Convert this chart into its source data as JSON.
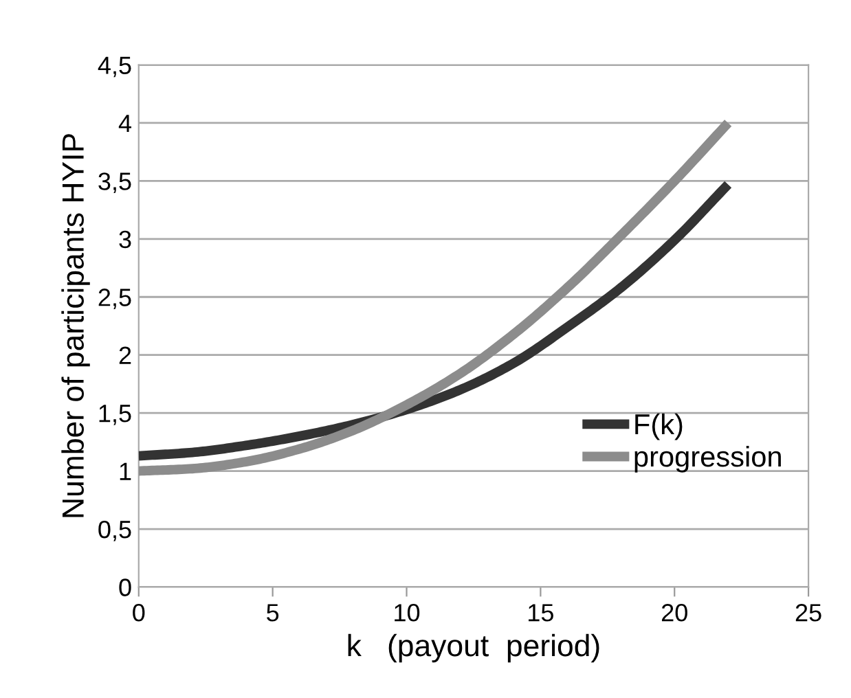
{
  "chart_data": {
    "type": "line",
    "xlabel": "k   (payout  period)",
    "ylabel": "Number of participants HYIP",
    "x": [
      0,
      2,
      4,
      6,
      8,
      10,
      12,
      14,
      16,
      18,
      20,
      22
    ],
    "series": [
      {
        "name": "F(k)",
        "color": "#333333",
        "values": [
          1.13,
          1.16,
          1.22,
          1.3,
          1.4,
          1.53,
          1.7,
          1.93,
          2.24,
          2.58,
          2.99,
          3.47
        ]
      },
      {
        "name": "progression",
        "color": "#8c8c8c",
        "values": [
          1.0,
          1.02,
          1.08,
          1.19,
          1.35,
          1.57,
          1.84,
          2.18,
          2.58,
          3.03,
          3.5,
          4.0
        ]
      }
    ],
    "xlim": [
      0,
      25
    ],
    "xticks": [
      0,
      5,
      10,
      15,
      20,
      25
    ],
    "ylim": [
      0,
      4.5
    ],
    "yticks": [
      0,
      {
        "value": 0.5,
        "label": "0,5"
      },
      1,
      {
        "value": 1.5,
        "label": "1,5"
      },
      2,
      {
        "value": 2.5,
        "label": "2,5"
      },
      3,
      {
        "value": 3.5,
        "label": "3,5"
      },
      4,
      {
        "value": 4.5,
        "label": "4,5"
      }
    ],
    "grid": "y",
    "legend": "lower right",
    "marker": "none",
    "line_style": "solid"
  }
}
